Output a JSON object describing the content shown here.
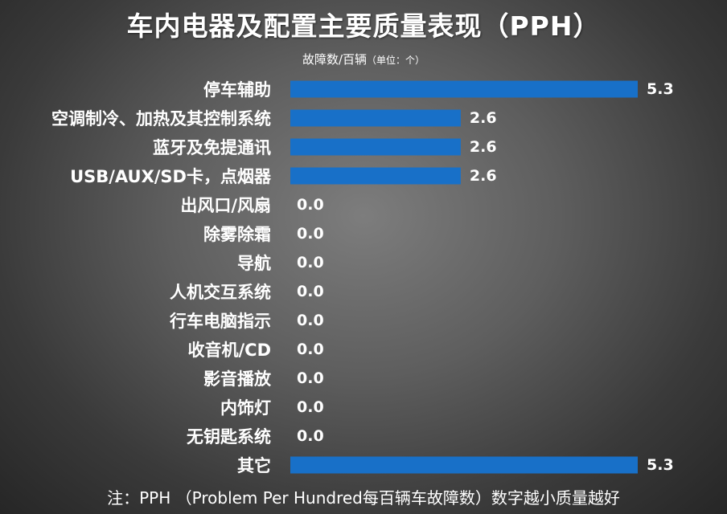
{
  "chart_data": {
    "type": "bar",
    "orientation": "horizontal",
    "title": "车内电器及配置主要质量表现（PPH）",
    "subtitle": "故障数/百辆",
    "unit_note": "（单位：个）",
    "categories": [
      "停车辅助",
      "空调制冷、加热及其控制系统",
      "蓝牙及免提通讯",
      "USB/AUX/SD卡，点烟器",
      "出风口/风扇",
      "除雾除霜",
      "导航",
      "人机交互系统",
      "行车电脑指示",
      "收音机/CD",
      "影音播放",
      "内饰灯",
      "无钥匙系统",
      "其它"
    ],
    "values": [
      5.3,
      2.6,
      2.6,
      2.6,
      0.0,
      0.0,
      0.0,
      0.0,
      0.0,
      0.0,
      0.0,
      0.0,
      0.0,
      5.3
    ],
    "value_labels": [
      "5.3",
      "2.6",
      "2.6",
      "2.6",
      "0.0",
      "0.0",
      "0.0",
      "0.0",
      "0.0",
      "0.0",
      "0.0",
      "0.0",
      "0.0",
      "5.3"
    ],
    "xlim": [
      0,
      5.3
    ],
    "grid": false,
    "legend": "none",
    "bar_color": "#1870C8",
    "background_color": "#5a5a5a"
  },
  "footnote": "注：PPH （Problem Per Hundred每百辆车故障数）数字越小质量越好"
}
